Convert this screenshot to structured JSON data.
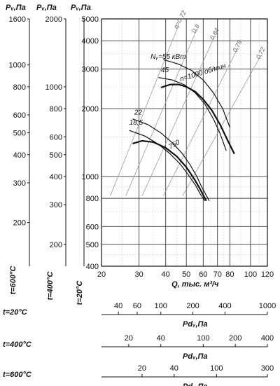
{
  "chart_data": {
    "type": "line",
    "left_headers": [
      {
        "id": "h600",
        "text": "Pᵥ,Па"
      },
      {
        "id": "h400",
        "text": "Pᵥ,Па"
      },
      {
        "id": "h20",
        "text": "Pᵥ,Па"
      }
    ],
    "temp_labels": [
      {
        "id": "t600",
        "text": "t=600°C"
      },
      {
        "id": "t400",
        "text": "t=400°C"
      },
      {
        "id": "t20",
        "text": "t=20°C"
      }
    ],
    "y_main_ticks": [
      400,
      500,
      600,
      800,
      1000,
      2000,
      3000,
      4000,
      5000
    ],
    "y_600_ticks": [
      200,
      300,
      400,
      500,
      600,
      800,
      1000,
      1600
    ],
    "y_400_ticks": [
      200,
      300,
      400,
      500,
      600,
      800,
      1000,
      2000
    ],
    "x_ticks": [
      20,
      30,
      40,
      50,
      60,
      70,
      80,
      100,
      120
    ],
    "xlim": [
      20,
      120
    ],
    "ylim": [
      400,
      5000
    ],
    "log_scale": true,
    "xlabel": "Q, тыс. м³/ч",
    "pd_axes": [
      {
        "temp": "t=20°C",
        "label": "Pdᵥ,Па",
        "ticks": [
          40,
          60,
          100,
          200,
          400,
          1000
        ]
      },
      {
        "temp": "t=400°C",
        "label": "Pdᵥ,Па",
        "ticks": [
          20,
          40,
          100,
          200,
          400
        ]
      },
      {
        "temp": "t=600°C",
        "label": "Pdᵥ,Па",
        "ticks": [
          20,
          40,
          100,
          300
        ]
      }
    ],
    "series": [
      {
        "name": "n=1000 об/мин",
        "x": [
          38,
          42,
          46,
          50,
          55,
          60,
          66,
          72,
          78,
          84
        ],
        "y": [
          2480,
          2560,
          2560,
          2500,
          2380,
          2200,
          1960,
          1700,
          1450,
          1260
        ]
      },
      {
        "name": "750",
        "x": [
          28,
          31,
          35,
          40,
          45,
          50,
          55,
          58,
          62
        ],
        "y": [
          1400,
          1440,
          1420,
          1340,
          1230,
          1100,
          960,
          880,
          780
        ]
      }
    ],
    "power_curves": [
      {
        "label": "Nᵧ=55 кВт",
        "x": [
          39,
          46,
          53,
          60,
          67,
          74,
          80
        ],
        "y": [
          3300,
          3150,
          2950,
          2680,
          2350,
          2000,
          1650
        ]
      },
      {
        "label": "45",
        "x": [
          37,
          43,
          49,
          55,
          61,
          67,
          72,
          77
        ],
        "y": [
          2750,
          2680,
          2550,
          2350,
          2100,
          1800,
          1550,
          1300
        ]
      },
      {
        "label": "22",
        "x": [
          28,
          33,
          38,
          43,
          48,
          52,
          56,
          59,
          64
        ],
        "y": [
          1800,
          1700,
          1560,
          1410,
          1260,
          1130,
          1000,
          900,
          780
        ]
      },
      {
        "label": "18,5",
        "x": [
          27,
          32,
          37,
          42,
          47,
          51,
          55,
          58,
          61
        ],
        "y": [
          1600,
          1510,
          1390,
          1260,
          1130,
          1020,
          920,
          840,
          780
        ]
      }
    ],
    "efficiency_lines": [
      {
        "label": "η=0,72",
        "x": [
          22,
          46
        ],
        "y": [
          820,
          4700
        ]
      },
      {
        "label": "0,8",
        "x": [
          26,
          56
        ],
        "y": [
          820,
          4500
        ]
      },
      {
        "label": "0,84",
        "x": [
          31,
          68
        ],
        "y": [
          820,
          4200
        ]
      },
      {
        "label": "0,78",
        "x": [
          39,
          87
        ],
        "y": [
          820,
          3700
        ]
      },
      {
        "label": "0,72",
        "x": [
          48,
          112
        ],
        "y": [
          820,
          3450
        ]
      }
    ]
  }
}
